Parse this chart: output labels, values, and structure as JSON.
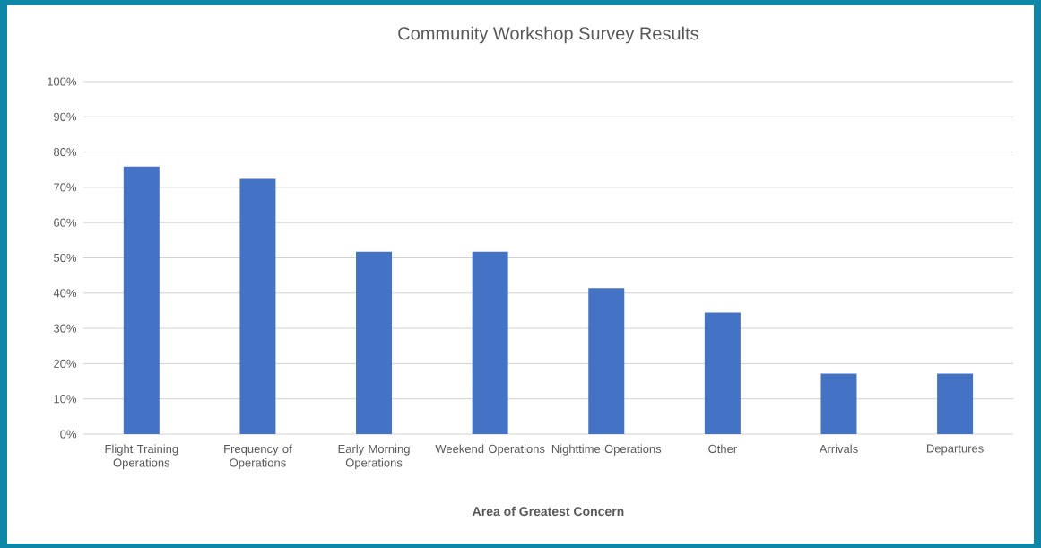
{
  "chart_data": {
    "type": "bar",
    "title": "Community Workshop Survey Results",
    "xlabel": "Area of Greatest Concern",
    "categories": [
      "Flight Training Operations",
      "Frequency of Operations",
      "Early Morning Operations",
      "Weekend Operations",
      "Nighttime Operations",
      "Other",
      "Arrivals",
      "Departures"
    ],
    "values": [
      75.9,
      72.4,
      51.7,
      51.7,
      41.4,
      34.5,
      17.2,
      17.2
    ],
    "color": "#4472c4",
    "ylim": [
      0,
      100
    ],
    "yticks": [
      {
        "value": 0,
        "label": "0%"
      },
      {
        "value": 10,
        "label": "10%"
      },
      {
        "value": 20,
        "label": "20%"
      },
      {
        "value": 30,
        "label": "30%"
      },
      {
        "value": 40,
        "label": "40%"
      },
      {
        "value": 50,
        "label": "50%"
      },
      {
        "value": 60,
        "label": "60%"
      },
      {
        "value": 70,
        "label": "70%"
      },
      {
        "value": 80,
        "label": "80%"
      },
      {
        "value": 90,
        "label": "90%"
      },
      {
        "value": 100,
        "label": "100%"
      }
    ],
    "grid": "y"
  }
}
